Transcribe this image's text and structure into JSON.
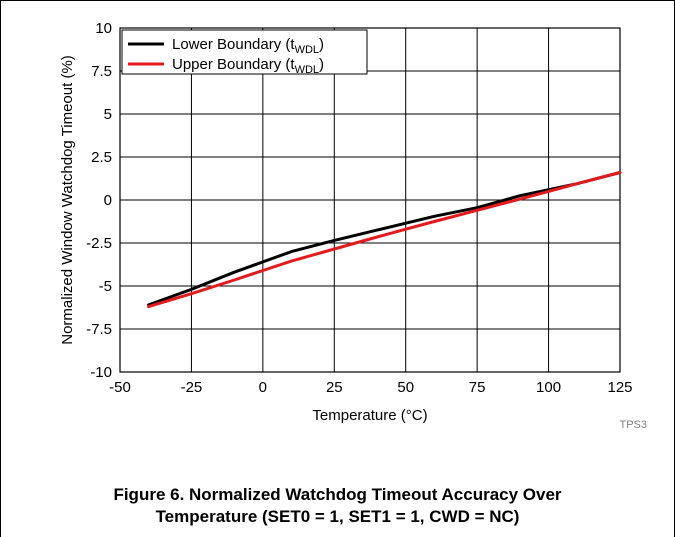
{
  "chart_data": {
    "type": "line",
    "xlabel": "Temperature (°C)",
    "ylabel": "Normalized Window Watchdog Timeout (%)",
    "xlim": [
      -50,
      125
    ],
    "ylim": [
      -10,
      10
    ],
    "xticks": [
      "-50",
      "-25",
      "0",
      "25",
      "50",
      "75",
      "100",
      "125"
    ],
    "yticks": [
      "10",
      "7.5",
      "5",
      "2.5",
      "0",
      "-2.5",
      "-5",
      "-7.5",
      "-10"
    ],
    "grid": true,
    "legend_placement": "top-left",
    "series": [
      {
        "name": "Lower Boundary (tWDL)",
        "name_main": "Lower Boundary (t",
        "name_sub": "WDL",
        "name_end": ")",
        "color": "#000000",
        "x": [
          -40,
          -25,
          -10,
          0,
          10,
          25,
          40,
          50,
          60,
          75,
          90,
          100,
          110,
          125
        ],
        "y": [
          -6.1,
          -5.2,
          -4.2,
          -3.6,
          -3.0,
          -2.35,
          -1.75,
          -1.35,
          -0.95,
          -0.45,
          0.25,
          0.6,
          0.95,
          1.6
        ]
      },
      {
        "name": "Upper Boundary (tWDL)",
        "name_main": "Upper Boundary (t",
        "name_sub": "WDL",
        "name_end": ")",
        "color": "#e41a1c",
        "x": [
          -40,
          -25,
          -10,
          0,
          10,
          25,
          40,
          50,
          60,
          75,
          90,
          100,
          110,
          125
        ],
        "y": [
          -6.2,
          -5.45,
          -4.65,
          -4.1,
          -3.55,
          -2.85,
          -2.15,
          -1.7,
          -1.25,
          -0.6,
          0.05,
          0.5,
          0.95,
          1.6
        ]
      }
    ],
    "annotation": "TPS3"
  },
  "caption": {
    "line1": "Figure 6. Normalized Watchdog Timeout Accuracy Over",
    "line2": "Temperature (SET0 = 1, SET1 = 1, CWD = NC)"
  }
}
